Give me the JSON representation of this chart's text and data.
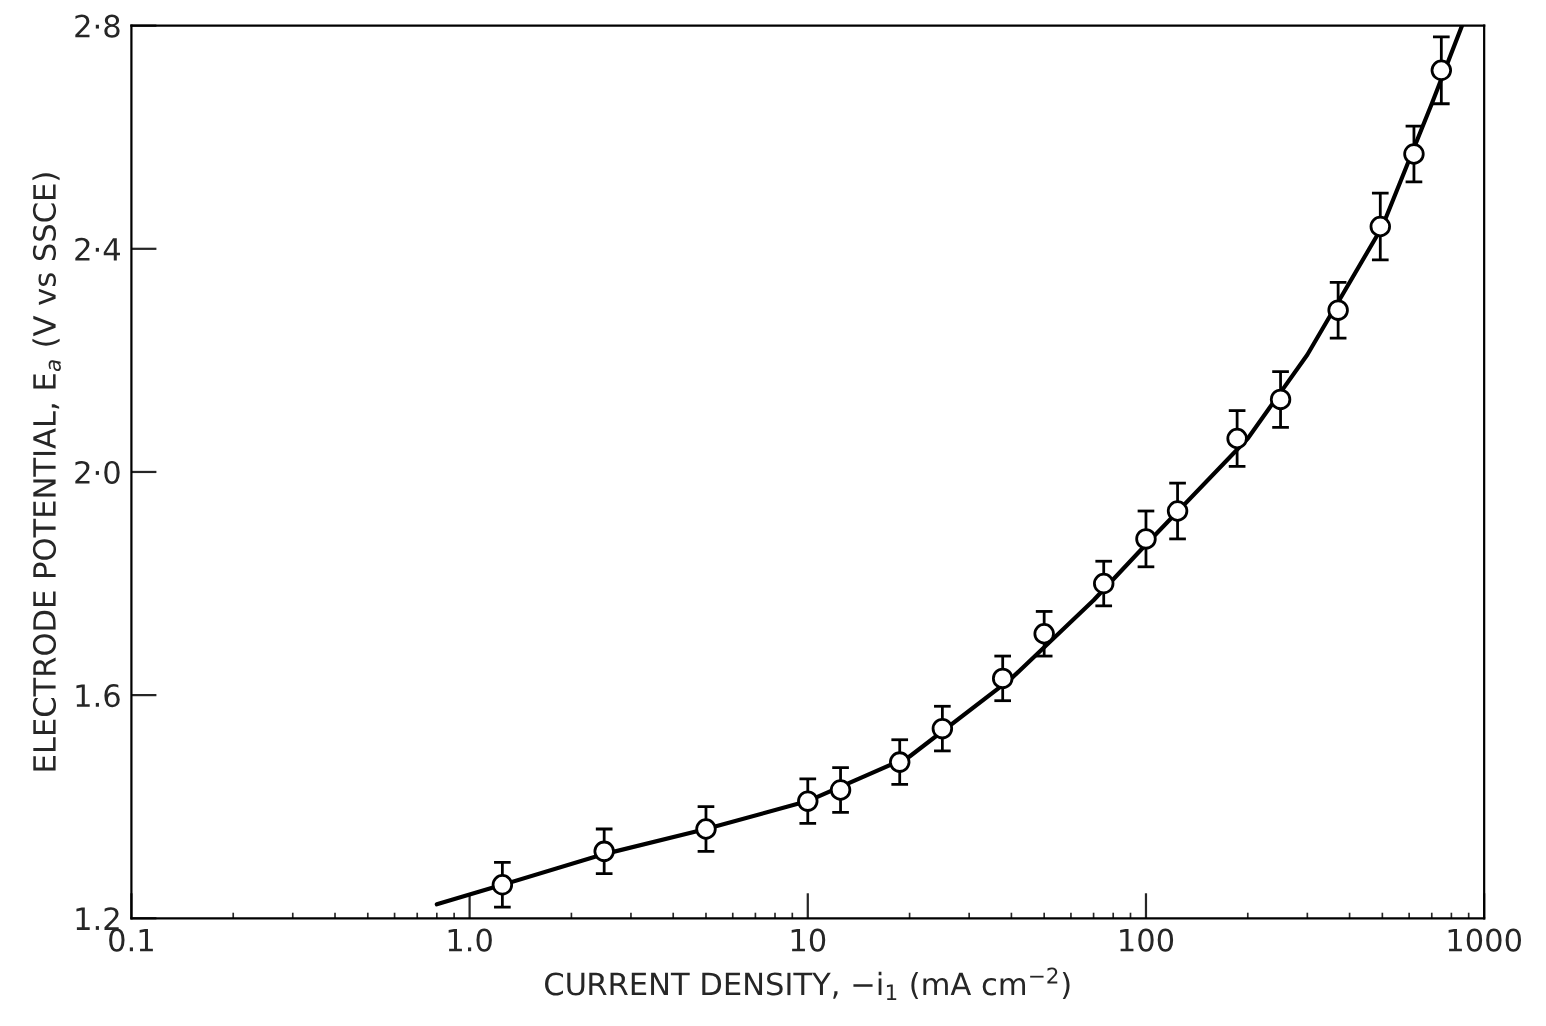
{
  "chart_data": {
    "type": "scatter",
    "xlabel": "CURRENT DENSITY, −i$_{1}$ (mA cm$^{−2}$)",
    "ylabel": "ELECTRODE POTENTIAL, E$_{a}$ (V vs SSCE)",
    "log": "x",
    "grid": false,
    "legend": false,
    "xlim": [
      0.1,
      1000
    ],
    "xticks": [
      0.1,
      {
        "value": 1,
        "label": "1.0"
      },
      10,
      100,
      1000
    ],
    "ylim": [
      1.2,
      2.8
    ],
    "yticks": [
      {
        "value": 1.2,
        "label": "1.2"
      },
      {
        "value": 1.6,
        "label": "1.6"
      },
      {
        "value": 2.0,
        "label": "2·0"
      },
      {
        "value": 2.4,
        "label": "2·4"
      },
      {
        "value": 2.8,
        "label": "2·8"
      }
    ],
    "series": [
      {
        "color": "#000000",
        "marker": "circle",
        "x": [
          1.25,
          2.5,
          5,
          10,
          12.5,
          18.7,
          25,
          37.7,
          50,
          75,
          100,
          124,
          186,
          250,
          370,
          493,
          620,
          747
        ],
        "values": [
          1.26,
          1.32,
          1.36,
          1.41,
          1.43,
          1.48,
          1.54,
          1.63,
          1.71,
          1.8,
          1.88,
          1.93,
          2.06,
          2.13,
          2.29,
          2.44,
          2.57,
          2.72
        ],
        "errors": [
          0.04,
          0.04,
          0.04,
          0.04,
          0.04,
          0.04,
          0.04,
          0.04,
          0.04,
          0.04,
          0.05,
          0.05,
          0.05,
          0.05,
          0.05,
          0.06,
          0.05,
          0.06
        ]
      },
      {
        "type": "line",
        "color": "#000000",
        "marker": "none",
        "line_style": "solid",
        "x": [
          0.8,
          1.25,
          2.5,
          5,
          10,
          20,
          40,
          70,
          100,
          200,
          300,
          500,
          700,
          860
        ],
        "values": [
          1.225,
          1.26,
          1.315,
          1.36,
          1.41,
          1.49,
          1.63,
          1.77,
          1.87,
          2.06,
          2.21,
          2.44,
          2.66,
          2.8
        ]
      }
    ]
  }
}
